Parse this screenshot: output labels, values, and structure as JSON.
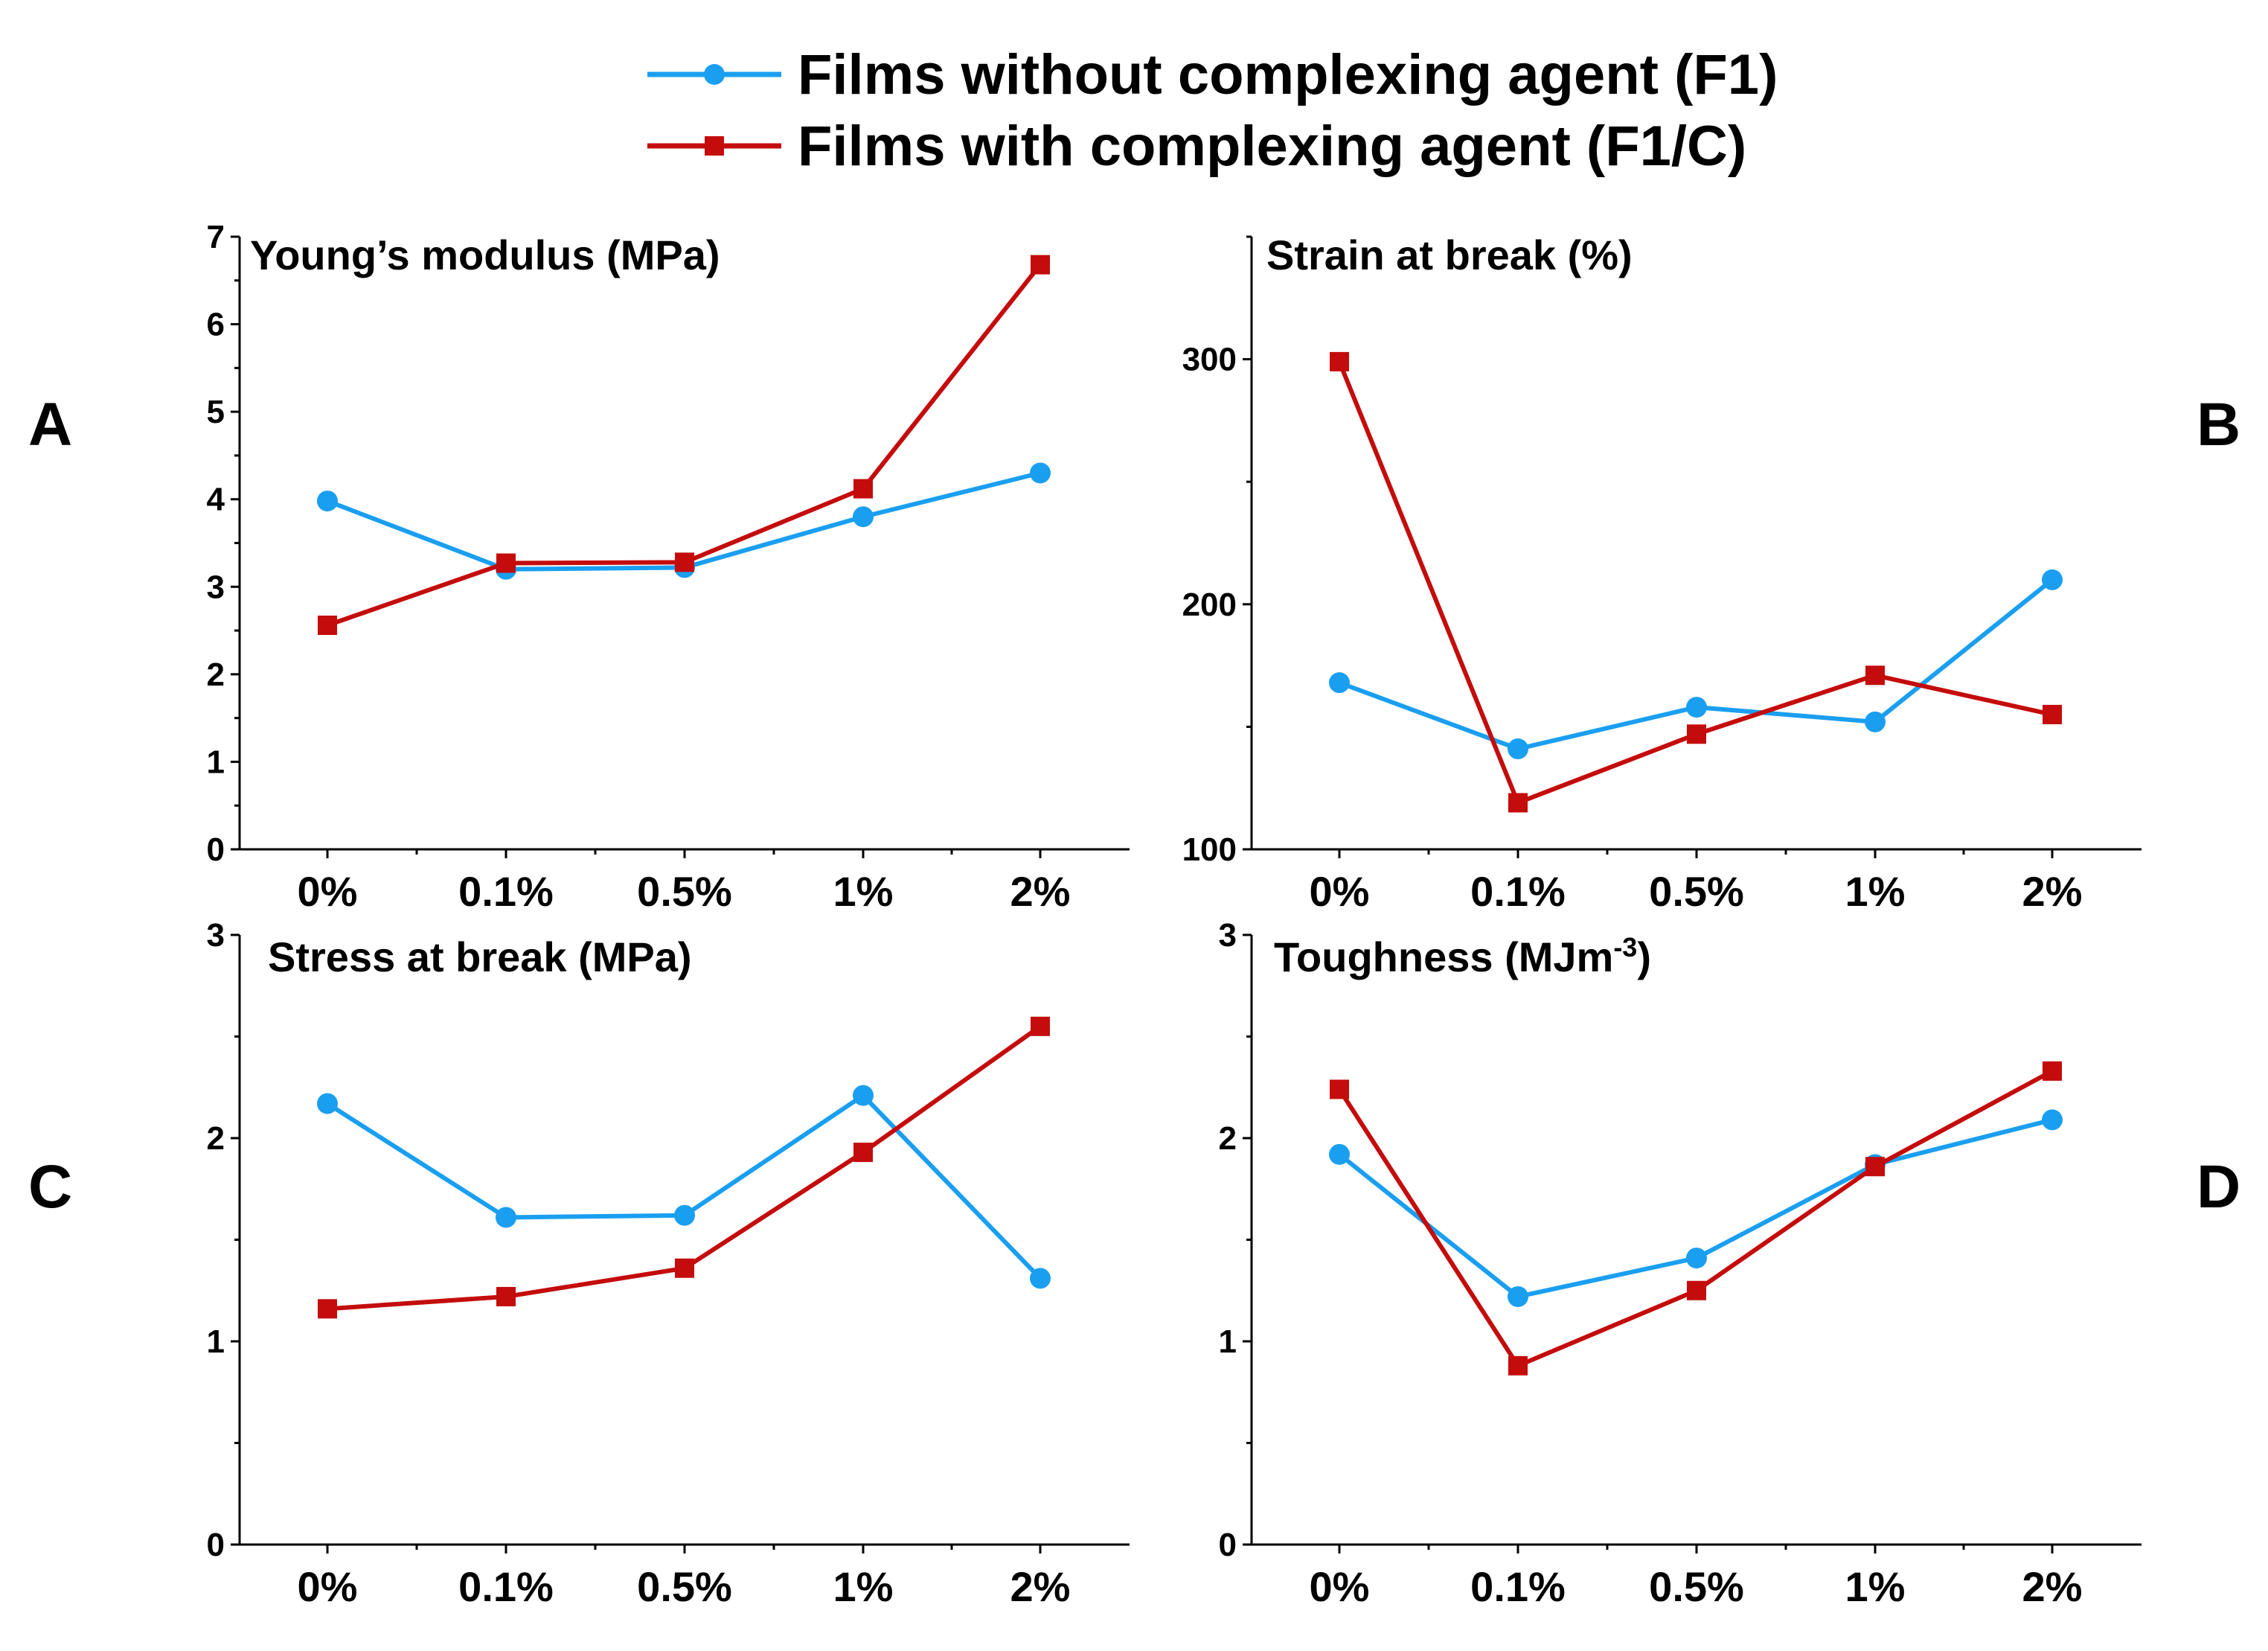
{
  "legend": [
    {
      "label": "Films without complexing agent (F1)",
      "color": "#1a9ff0",
      "marker": "circle"
    },
    {
      "label": "Films with complexing agent (F1/C)",
      "color": "#c40c0c",
      "marker": "square"
    }
  ],
  "chart_data": [
    {
      "panel": "A",
      "type": "line",
      "title": "Young’s modulus (MPa)",
      "categories": [
        "0%",
        "0.1%",
        "0.5%",
        "1%",
        "2%"
      ],
      "yticks": [
        "0",
        "1",
        "2",
        "3",
        "4",
        "5",
        "6",
        "7"
      ],
      "ylim": [
        0,
        7
      ],
      "series": [
        {
          "name": "Films without complexing agent (F1)",
          "values": [
            3.98,
            3.2,
            3.22,
            3.8,
            4.3
          ]
        },
        {
          "name": "Films with complexing agent (F1/C)",
          "values": [
            2.56,
            3.27,
            3.28,
            4.12,
            6.68
          ]
        }
      ]
    },
    {
      "panel": "B",
      "type": "line",
      "title": "Strain at break (%)",
      "categories": [
        "0%",
        "0.1%",
        "0.5%",
        "1%",
        "2%"
      ],
      "yticks": [
        "100",
        "200",
        "300"
      ],
      "ylim": [
        100,
        350
      ],
      "series": [
        {
          "name": "Films without complexing agent (F1)",
          "values": [
            168,
            141,
            158,
            152,
            210
          ]
        },
        {
          "name": "Films with complexing agent (F1/C)",
          "values": [
            299,
            119,
            147,
            171,
            155
          ]
        }
      ]
    },
    {
      "panel": "C",
      "type": "line",
      "title": "Stress at break (MPa)",
      "categories": [
        "0%",
        "0.1%",
        "0.5%",
        "1%",
        "2%"
      ],
      "yticks": [
        "0",
        "1",
        "2",
        "3"
      ],
      "ylim": [
        0,
        3
      ],
      "series": [
        {
          "name": "Films without complexing agent (F1)",
          "values": [
            2.17,
            1.61,
            1.62,
            2.21,
            1.31
          ]
        },
        {
          "name": "Films with complexing agent (F1/C)",
          "values": [
            1.16,
            1.22,
            1.36,
            1.93,
            2.55
          ]
        }
      ]
    },
    {
      "panel": "D",
      "type": "line",
      "title": "Toughness (MJm",
      "title_sup": "-3",
      "title_suffix": ")",
      "categories": [
        "0%",
        "0.1%",
        "0.5%",
        "1%",
        "2%"
      ],
      "yticks": [
        "0",
        "1",
        "2",
        "3"
      ],
      "ylim": [
        0,
        3
      ],
      "series": [
        {
          "name": "Films without complexing agent (F1)",
          "values": [
            1.92,
            1.22,
            1.41,
            1.87,
            2.09
          ]
        },
        {
          "name": "Films with complexing agent (F1/C)",
          "values": [
            2.24,
            0.88,
            1.25,
            1.86,
            2.33
          ]
        }
      ]
    }
  ]
}
